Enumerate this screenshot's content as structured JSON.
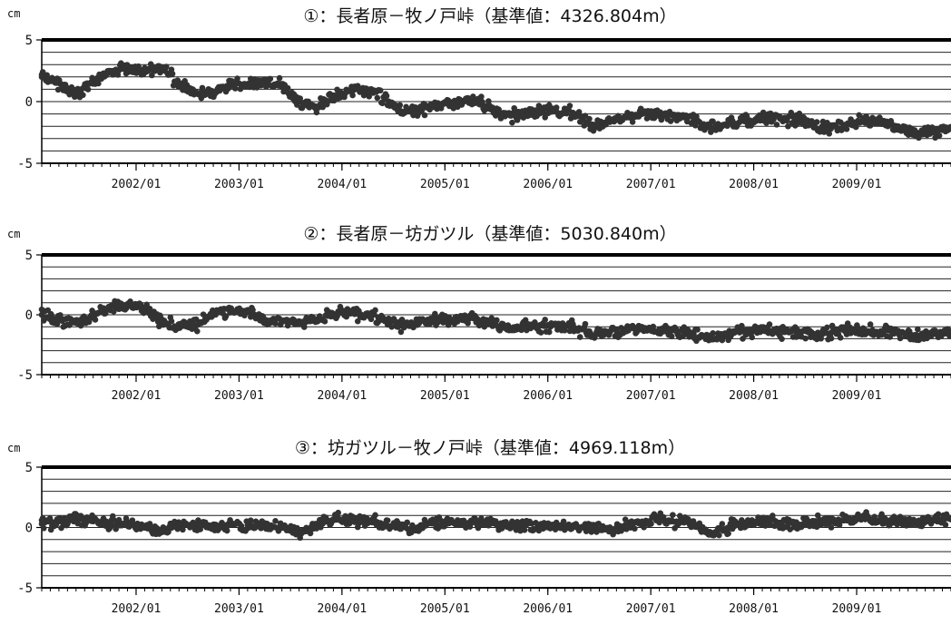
{
  "chart_data": [
    {
      "type": "scatter",
      "title": "①：長者原－牧ノ戸峠（基準値：4326.804m）",
      "unit_label": "cm",
      "ylim": [
        -5,
        5
      ],
      "yticks": [
        "5",
        "0",
        "-5"
      ],
      "xlim": [
        "2001/02",
        "2009/12"
      ],
      "xtick_labels": [
        "2002/01",
        "2003/01",
        "2004/01",
        "2005/01",
        "2006/01",
        "2007/01",
        "2008/01",
        "2009/01"
      ],
      "grid": true,
      "marker_color": "#333333",
      "series": [
        {
          "x": [
            "2001/02",
            "2001/04",
            "2001/06",
            "2001/08",
            "2001/10",
            "2001/12",
            "2002/02",
            "2002/04",
            "2002/06",
            "2002/08",
            "2002/10",
            "2002/12",
            "2003/02",
            "2003/04",
            "2003/06",
            "2003/08",
            "2003/10",
            "2003/12",
            "2004/02",
            "2004/04",
            "2004/06",
            "2004/08",
            "2004/10",
            "2004/12",
            "2005/02",
            "2005/04",
            "2005/06",
            "2005/08",
            "2005/10",
            "2005/12",
            "2006/02",
            "2006/04",
            "2006/06",
            "2006/08",
            "2006/10",
            "2006/12",
            "2007/02",
            "2007/04",
            "2007/06",
            "2007/08",
            "2007/10",
            "2007/12",
            "2008/02",
            "2008/04",
            "2008/06",
            "2008/08",
            "2008/10",
            "2008/12",
            "2009/02",
            "2009/04",
            "2009/06",
            "2009/08",
            "2009/10",
            "2009/12"
          ],
          "y": [
            2.0,
            1.5,
            0.6,
            1.6,
            2.5,
            2.6,
            2.5,
            2.8,
            1.4,
            0.7,
            0.8,
            1.3,
            1.4,
            1.8,
            1.3,
            0.0,
            -0.4,
            0.5,
            0.9,
            1.0,
            0.4,
            -0.8,
            -0.6,
            -0.3,
            -0.2,
            0.1,
            -0.4,
            -1.2,
            -1.1,
            -0.7,
            -0.8,
            -1.0,
            -2.0,
            -1.6,
            -1.2,
            -1.0,
            -1.0,
            -1.1,
            -1.5,
            -2.2,
            -1.8,
            -1.5,
            -1.3,
            -1.2,
            -1.5,
            -2.0,
            -2.2,
            -1.8,
            -1.6,
            -1.6,
            -2.1,
            -2.6,
            -2.4,
            -2.2
          ]
        }
      ]
    },
    {
      "type": "scatter",
      "title": "②：長者原－坊ガツル（基準値：5030.840m）",
      "unit_label": "cm",
      "ylim": [
        -5,
        5
      ],
      "yticks": [
        "5",
        "0",
        "-5"
      ],
      "xlim": [
        "2001/02",
        "2009/12"
      ],
      "xtick_labels": [
        "2002/01",
        "2003/01",
        "2004/01",
        "2005/01",
        "2006/01",
        "2007/01",
        "2008/01",
        "2009/01"
      ],
      "grid": true,
      "marker_color": "#333333",
      "series": [
        {
          "x": [
            "2001/02",
            "2001/04",
            "2001/06",
            "2001/08",
            "2001/10",
            "2001/12",
            "2002/02",
            "2002/04",
            "2002/06",
            "2002/08",
            "2002/10",
            "2002/12",
            "2003/02",
            "2003/04",
            "2003/06",
            "2003/08",
            "2003/10",
            "2003/12",
            "2004/02",
            "2004/04",
            "2004/06",
            "2004/08",
            "2004/10",
            "2004/12",
            "2005/02",
            "2005/04",
            "2005/06",
            "2005/08",
            "2005/10",
            "2005/12",
            "2006/02",
            "2006/04",
            "2006/06",
            "2006/08",
            "2006/10",
            "2006/12",
            "2007/02",
            "2007/04",
            "2007/06",
            "2007/08",
            "2007/10",
            "2007/12",
            "2008/02",
            "2008/04",
            "2008/06",
            "2008/08",
            "2008/10",
            "2008/12",
            "2009/02",
            "2009/04",
            "2009/06",
            "2009/08",
            "2009/10",
            "2009/12"
          ],
          "y": [
            0.0,
            -0.5,
            -0.6,
            -0.1,
            0.7,
            0.8,
            0.6,
            -0.6,
            -0.9,
            -0.9,
            0.0,
            0.3,
            0.4,
            -0.4,
            -0.6,
            -0.7,
            -0.4,
            0.0,
            0.1,
            0.0,
            -0.5,
            -0.9,
            -0.7,
            -0.3,
            -0.4,
            -0.1,
            -0.7,
            -1.0,
            -1.0,
            -0.9,
            -0.9,
            -1.0,
            -1.6,
            -1.5,
            -1.2,
            -1.1,
            -1.3,
            -1.4,
            -1.6,
            -2.0,
            -1.6,
            -1.4,
            -1.3,
            -1.3,
            -1.5,
            -1.6,
            -1.5,
            -1.3,
            -1.3,
            -1.4,
            -1.5,
            -1.7,
            -1.6,
            -1.5
          ]
        }
      ]
    },
    {
      "type": "scatter",
      "title": "③：坊ガツル－牧ノ戸峠（基準値：4969.118m）",
      "unit_label": "cm",
      "ylim": [
        -5,
        5
      ],
      "yticks": [
        "5",
        "0",
        "-5"
      ],
      "xlim": [
        "2001/02",
        "2009/12"
      ],
      "xtick_labels": [
        "2002/01",
        "2003/01",
        "2004/01",
        "2005/01",
        "2006/01",
        "2007/01",
        "2008/01",
        "2009/01"
      ],
      "grid": true,
      "marker_color": "#333333",
      "series": [
        {
          "x": [
            "2001/02",
            "2001/04",
            "2001/06",
            "2001/08",
            "2001/10",
            "2001/12",
            "2002/02",
            "2002/04",
            "2002/06",
            "2002/08",
            "2002/10",
            "2002/12",
            "2003/02",
            "2003/04",
            "2003/06",
            "2003/08",
            "2003/10",
            "2003/12",
            "2004/02",
            "2004/04",
            "2004/06",
            "2004/08",
            "2004/10",
            "2004/12",
            "2005/02",
            "2005/04",
            "2005/06",
            "2005/08",
            "2005/10",
            "2005/12",
            "2006/02",
            "2006/04",
            "2006/06",
            "2006/08",
            "2006/10",
            "2006/12",
            "2007/02",
            "2007/04",
            "2007/06",
            "2007/08",
            "2007/10",
            "2007/12",
            "2008/02",
            "2008/04",
            "2008/06",
            "2008/08",
            "2008/10",
            "2008/12",
            "2009/02",
            "2009/04",
            "2009/06",
            "2009/08",
            "2009/10",
            "2009/12"
          ],
          "y": [
            0.3,
            0.5,
            0.7,
            0.5,
            0.3,
            0.4,
            0.0,
            -0.4,
            0.3,
            0.2,
            0.0,
            0.3,
            0.2,
            0.2,
            0.0,
            -0.4,
            0.3,
            0.6,
            0.6,
            0.5,
            0.3,
            0.1,
            0.0,
            0.3,
            0.4,
            0.4,
            0.4,
            0.3,
            0.1,
            0.1,
            0.1,
            0.2,
            0.0,
            -0.2,
            0.2,
            0.5,
            0.6,
            0.5,
            0.3,
            -0.6,
            0.0,
            0.4,
            0.5,
            0.4,
            0.1,
            0.4,
            0.5,
            0.7,
            0.8,
            0.6,
            0.5,
            0.4,
            0.6,
            0.8
          ]
        }
      ]
    }
  ]
}
